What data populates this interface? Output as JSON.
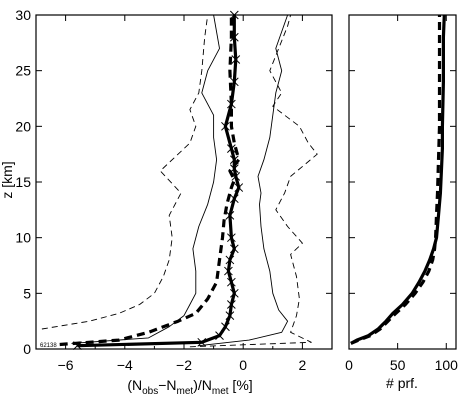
{
  "chart_data": [
    {
      "type": "line",
      "panel": "left",
      "ylabel": "z [km]",
      "xlabel_parts": [
        "(N",
        "obs",
        "−N",
        "met",
        ")/N",
        "met",
        " [%]"
      ],
      "xlim": [
        -7,
        3
      ],
      "ylim": [
        0,
        30
      ],
      "xticks": [
        -6,
        -4,
        -2,
        0,
        2
      ],
      "xtick_labels": [
        "−6",
        "−4",
        "−2",
        "0",
        "2"
      ],
      "yticks": [
        0,
        5,
        10,
        15,
        20,
        25,
        30
      ],
      "ytick_labels": [
        "0",
        "5",
        "10",
        "15",
        "20",
        "25",
        "30"
      ],
      "corner_note": "62138",
      "series": [
        {
          "style": "thick-solid-crosses",
          "x": [
            -5.6,
            -1.4,
            -0.8,
            -0.6,
            -0.45,
            -0.4,
            -0.3,
            -0.4,
            -0.5,
            -0.45,
            -0.3,
            -0.4,
            -0.45,
            -0.3,
            -0.15,
            -0.25,
            -0.3,
            -0.3,
            -0.4,
            -0.6,
            -0.4,
            -0.3,
            -0.25,
            -0.3,
            -0.3
          ],
          "y": [
            0.3,
            0.6,
            1.2,
            2.0,
            3.0,
            4.0,
            5.0,
            6.0,
            7.0,
            8.0,
            9.0,
            10.0,
            12.0,
            13.5,
            14.5,
            15.5,
            16.2,
            17.0,
            18.0,
            20.0,
            22.0,
            24.0,
            26.0,
            28.0,
            30.0
          ]
        },
        {
          "style": "thick-dashed",
          "x": [
            -6.2,
            -4.2,
            -3.2,
            -2.2,
            -1.6,
            -1.2,
            -0.9,
            -0.8,
            -0.7,
            -0.65,
            -0.55,
            -0.4,
            -0.3,
            -0.45,
            -0.15,
            -0.3,
            -0.4,
            -0.4,
            -0.45,
            -0.4,
            -0.4
          ],
          "y": [
            0.4,
            0.8,
            1.5,
            2.5,
            3.2,
            4.5,
            6.0,
            8.0,
            10.0,
            11.5,
            13.0,
            14.5,
            15.2,
            16.0,
            17.0,
            18.5,
            20.0,
            22.0,
            25.0,
            28.0,
            30.0
          ]
        },
        {
          "style": "thin-solid",
          "x": [
            -5.8,
            -3.2,
            -2.5,
            -2.0,
            -1.8,
            -1.6,
            -1.6,
            -1.7,
            -1.5,
            -1.2,
            -1.0,
            -0.9,
            -1.0,
            -1.0,
            -1.4,
            -1.2,
            -0.8,
            -1.0
          ],
          "y": [
            0.5,
            1.0,
            2.0,
            3.0,
            4.0,
            5.0,
            7.0,
            9.0,
            11.0,
            13.0,
            15.0,
            17.0,
            19.0,
            21.0,
            23.0,
            25.0,
            27.0,
            30.0
          ]
        },
        {
          "style": "thin-solid",
          "x": [
            -1.5,
            0.2,
            1.3,
            1.5,
            1.2,
            1.0,
            0.9,
            0.7,
            0.6,
            0.55,
            0.6,
            0.5,
            0.7,
            0.9,
            1.0,
            1.1,
            1.3,
            1.1,
            1.5
          ],
          "y": [
            0.3,
            0.8,
            1.5,
            2.5,
            3.5,
            5.0,
            7.0,
            9.0,
            11.0,
            13.0,
            14.0,
            15.5,
            17.0,
            19.0,
            21.0,
            23.0,
            25.0,
            27.0,
            30.0
          ]
        },
        {
          "style": "thin-dashed",
          "x": [
            -6.8,
            -5.2,
            -4.2,
            -3.5,
            -3.0,
            -2.7,
            -2.5,
            -2.4,
            -2.5,
            -2.1,
            -2.8,
            -1.8,
            -1.6,
            -1.8,
            -1.5,
            -1.4,
            -1.3,
            -1.2
          ],
          "y": [
            1.8,
            2.5,
            3.2,
            4.0,
            5.0,
            6.5,
            8.0,
            10.0,
            12.0,
            14.0,
            16.0,
            18.5,
            20.0,
            21.5,
            23.0,
            25.0,
            28.0,
            30.0
          ]
        },
        {
          "style": "thin-dashed",
          "x": [
            -1.8,
            2.3,
            1.6,
            1.8,
            1.9,
            1.8,
            1.6,
            2.0,
            1.5,
            1.1,
            1.4,
            1.6,
            2.5,
            2.2,
            1.9,
            1.4,
            1.0,
            1.3,
            0.9,
            1.2,
            1.5,
            1.6
          ],
          "y": [
            0.2,
            0.6,
            1.5,
            3.0,
            4.5,
            6.5,
            8.5,
            9.5,
            11.0,
            12.5,
            14.0,
            15.5,
            17.5,
            18.5,
            20.0,
            21.0,
            21.8,
            23.0,
            25.0,
            27.0,
            29.0,
            30.0
          ]
        }
      ]
    },
    {
      "type": "line",
      "panel": "right",
      "xlabel": "# prf.",
      "xlim": [
        0,
        110
      ],
      "ylim": [
        0,
        30
      ],
      "xticks": [
        0,
        50,
        100
      ],
      "xtick_labels": [
        "0",
        "50",
        "100"
      ],
      "series": [
        {
          "style": "thick-solid",
          "x": [
            2,
            8,
            20,
            30,
            38,
            45,
            55,
            65,
            72,
            78,
            83,
            87,
            90,
            92,
            94,
            95,
            96,
            96,
            97,
            97,
            98
          ],
          "y": [
            0.5,
            0.8,
            1.2,
            1.8,
            2.5,
            3.2,
            4.0,
            5.0,
            6.0,
            7.0,
            8.0,
            9.0,
            10.0,
            12.0,
            14.0,
            16.0,
            18.0,
            20.0,
            24.0,
            28.0,
            30.0
          ]
        },
        {
          "style": "thick-dashed",
          "x": [
            2,
            10,
            22,
            32,
            40,
            48,
            58,
            68,
            76,
            82,
            86,
            88,
            89,
            90,
            91,
            92,
            93,
            93,
            93
          ],
          "y": [
            0.5,
            0.8,
            1.2,
            1.8,
            2.5,
            3.2,
            4.0,
            5.0,
            6.0,
            7.0,
            8.0,
            9.0,
            10.0,
            12.0,
            14.0,
            17.0,
            20.0,
            25.0,
            30.0
          ]
        }
      ]
    }
  ]
}
